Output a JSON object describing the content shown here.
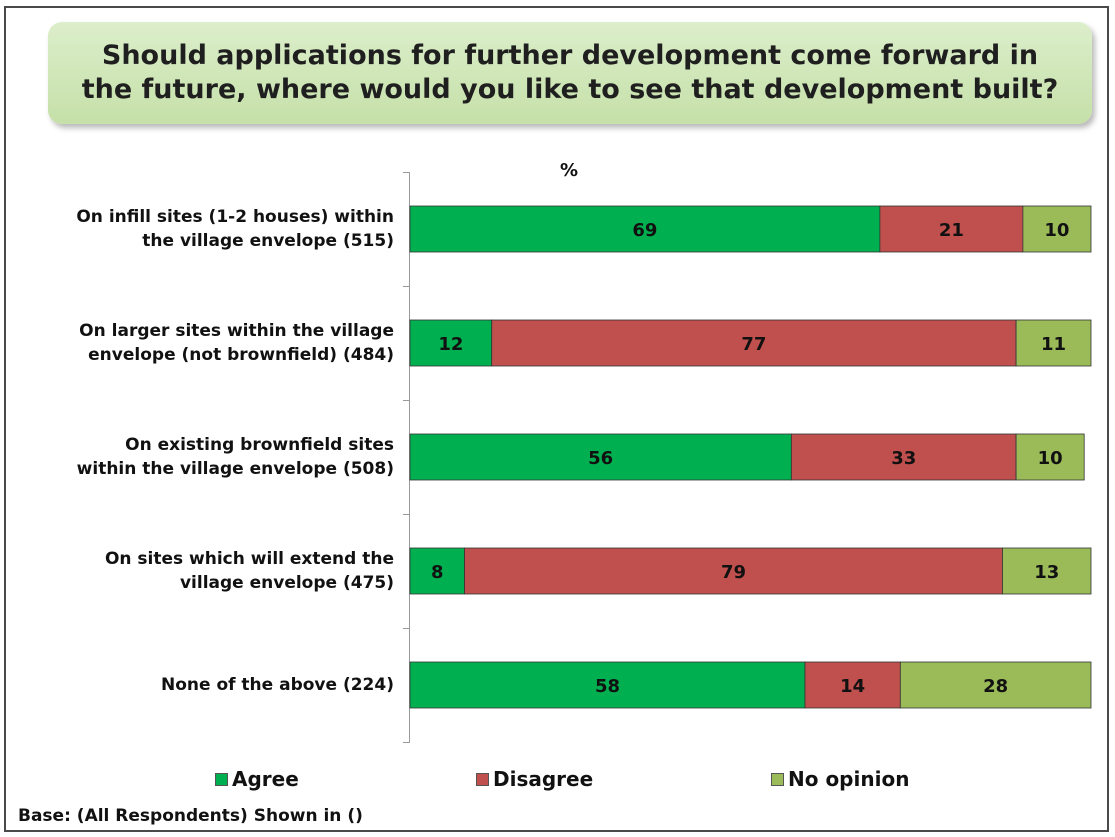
{
  "title": "Should applications for further development come forward in\nthe future, where would you like to see that development built?",
  "unit_label": "%",
  "base_note": "Base: (All Respondents) Shown in ()",
  "colors": {
    "agree": "#00b050",
    "disagree": "#c0504d",
    "no_opinion": "#9bbb59"
  },
  "chart_data": {
    "type": "bar",
    "orientation": "horizontal",
    "stacked": true,
    "categories": [
      "On infill sites (1-2 houses) within\nthe village envelope (515)",
      "On larger sites within the village\nenvelope (not brownfield) (484)",
      "On existing brownfield sites\nwithin the village envelope (508)",
      "On sites which will extend the\nvillage envelope (475)",
      "None of the above (224)"
    ],
    "series": [
      {
        "name": "Agree",
        "values": [
          69,
          12,
          56,
          8,
          58
        ]
      },
      {
        "name": "Disagree",
        "values": [
          21,
          77,
          33,
          79,
          14
        ]
      },
      {
        "name": "No opinion",
        "values": [
          10,
          11,
          10,
          13,
          28
        ]
      }
    ],
    "xlim": [
      0,
      100
    ],
    "legend_position": "bottom",
    "grid": false
  }
}
